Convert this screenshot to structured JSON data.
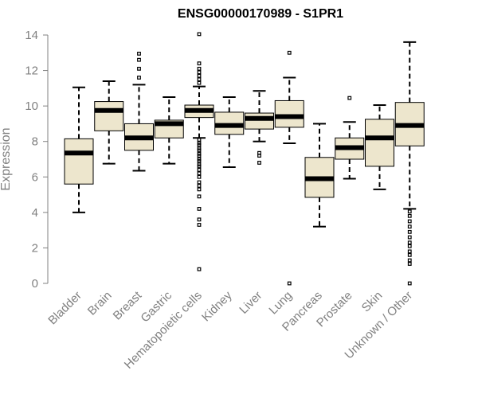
{
  "chart_data": {
    "type": "boxplot",
    "title": "ENSG00000170989 - S1PR1",
    "ylabel": "Expression",
    "xlabel": "",
    "ylim": [
      0,
      14
    ],
    "yticks": [
      0,
      2,
      4,
      6,
      8,
      10,
      12,
      14
    ],
    "grid": false,
    "box_color": "#ede6cd",
    "categories": [
      "Bladder",
      "Brain",
      "Breast",
      "Gastric",
      "Hematopoietic cells",
      "Kidney",
      "Liver",
      "Lung",
      "Pancreas",
      "Prostate",
      "Skin",
      "Unknown / Other"
    ],
    "boxes": [
      {
        "min": 4.0,
        "q1": 5.6,
        "median": 7.35,
        "q3": 8.15,
        "max": 11.05,
        "outliers": []
      },
      {
        "min": 6.75,
        "q1": 8.6,
        "median": 9.75,
        "q3": 10.25,
        "max": 11.4,
        "outliers": []
      },
      {
        "min": 6.35,
        "q1": 7.5,
        "median": 8.2,
        "q3": 9.0,
        "max": 11.2,
        "outliers": [
          11.6,
          12.1,
          12.6,
          12.95
        ]
      },
      {
        "min": 6.75,
        "q1": 8.2,
        "median": 9.0,
        "q3": 9.2,
        "max": 10.5,
        "outliers": []
      },
      {
        "min": 8.2,
        "q1": 9.35,
        "median": 9.75,
        "q3": 10.05,
        "max": 11.1,
        "outliers": [
          0.8,
          3.3,
          3.6,
          4.2,
          4.9,
          5.3,
          5.5,
          5.7,
          6.0,
          6.2,
          6.4,
          6.6,
          6.7,
          6.9,
          7.0,
          7.2,
          7.3,
          7.5,
          7.6,
          7.8,
          7.9,
          8.1,
          11.3,
          11.5,
          11.7,
          11.9,
          12.1,
          12.4,
          14.05
        ]
      },
      {
        "min": 6.55,
        "q1": 8.4,
        "median": 8.9,
        "q3": 9.65,
        "max": 10.5,
        "outliers": []
      },
      {
        "min": 8.0,
        "q1": 8.7,
        "median": 9.3,
        "q3": 9.6,
        "max": 10.85,
        "outliers": [
          6.8,
          7.2,
          7.35
        ]
      },
      {
        "min": 7.9,
        "q1": 8.8,
        "median": 9.4,
        "q3": 10.3,
        "max": 11.6,
        "outliers": [
          0.0,
          13.0
        ]
      },
      {
        "min": 3.2,
        "q1": 4.85,
        "median": 5.9,
        "q3": 7.1,
        "max": 9.0,
        "outliers": []
      },
      {
        "min": 5.9,
        "q1": 7.0,
        "median": 7.65,
        "q3": 8.2,
        "max": 9.1,
        "outliers": [
          10.45
        ]
      },
      {
        "min": 5.3,
        "q1": 6.6,
        "median": 8.2,
        "q3": 9.25,
        "max": 10.05,
        "outliers": []
      },
      {
        "min": 4.2,
        "q1": 7.75,
        "median": 8.9,
        "q3": 10.2,
        "max": 13.6,
        "outliers": [
          0.0,
          1.1,
          1.3,
          1.6,
          1.8,
          2.1,
          2.3,
          2.6,
          2.9,
          3.2,
          3.5,
          3.8,
          4.05
        ]
      }
    ]
  }
}
